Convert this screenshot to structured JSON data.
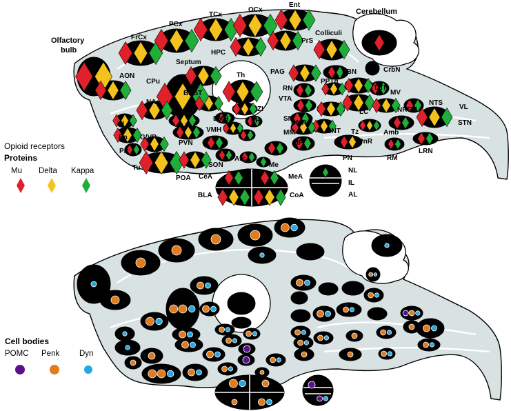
{
  "colors": {
    "mu": "#e0202a",
    "delta": "#f4c21c",
    "kappa": "#1fae3a",
    "pomc": "#5a0f8c",
    "penk": "#e07b1e",
    "dyn": "#25a8e0",
    "brain_fill": "#d9e2e2",
    "nucleus": "#000000"
  },
  "legend_receptors": {
    "title": "Opioid receptors",
    "heading": "Proteins",
    "items": [
      {
        "label": "Mu",
        "color": "#e0202a",
        "icon": "red-diamond-icon"
      },
      {
        "label": "Delta",
        "color": "#f4c21c",
        "icon": "yellow-diamond-icon"
      },
      {
        "label": "Kappa",
        "color": "#1fae3a",
        "icon": "green-diamond-icon"
      }
    ]
  },
  "legend_cells": {
    "heading": "Cell bodies",
    "items": [
      {
        "label": "POMC",
        "color": "#5a0f8c",
        "icon": "purple-dot-icon"
      },
      {
        "label": "Penk",
        "color": "#e07b1e",
        "icon": "orange-dot-icon"
      },
      {
        "label": "Dyn",
        "color": "#25a8e0",
        "icon": "blue-dot-icon"
      }
    ]
  },
  "region_labels": {
    "olfactory_bulb_1": "Olfactory",
    "olfactory_bulb_2": "bulb",
    "frcx": "FrCx",
    "pcx": "PCx",
    "tcx": "TCx",
    "ocx": "OCx",
    "ent": "Ent",
    "cerebellum": "Cerebellum",
    "colliculi": "Colliculi",
    "prs": "PrS",
    "hpc": "HPC",
    "aon": "AON",
    "septum": "Septum",
    "cpu": "CPu",
    "th": "Th",
    "pag": "PAG",
    "pbn": "PBN",
    "crbn": "CrbN",
    "bnst": "BNST",
    "rn": "RN",
    "pptg": "PPTg",
    "dtn": "DTN",
    "mv": "MV",
    "nac": "NAc",
    "zi": "ZI",
    "vta": "VTA",
    "lc": "LC",
    "nrgc": "NRGC",
    "nts": "NTS",
    "vl": "VL",
    "cl": "Cl",
    "dmh": "DMH",
    "lh": "LH",
    "dmr": "DMR",
    "stn": "STN",
    "en": "En",
    "gvp": "G/VP",
    "vmh": "VMH",
    "sn": "SN",
    "snt": "SNT",
    "tz": "Tz",
    "amb": "Amb",
    "pvn": "PVN",
    "mm": "MM",
    "pnr": "PnR",
    "pir": "Pir",
    "arc": "Arc",
    "ip": "IP",
    "lrn": "LRN",
    "son": "SON",
    "me": "Me",
    "pn": "PN",
    "rm": "RM",
    "tu": "Tu",
    "poa": "POA",
    "cea": "CeA",
    "mea": "MeA",
    "nl": "NL",
    "il": "IL",
    "al": "AL",
    "bla": "BLA",
    "coa": "CoA"
  }
}
